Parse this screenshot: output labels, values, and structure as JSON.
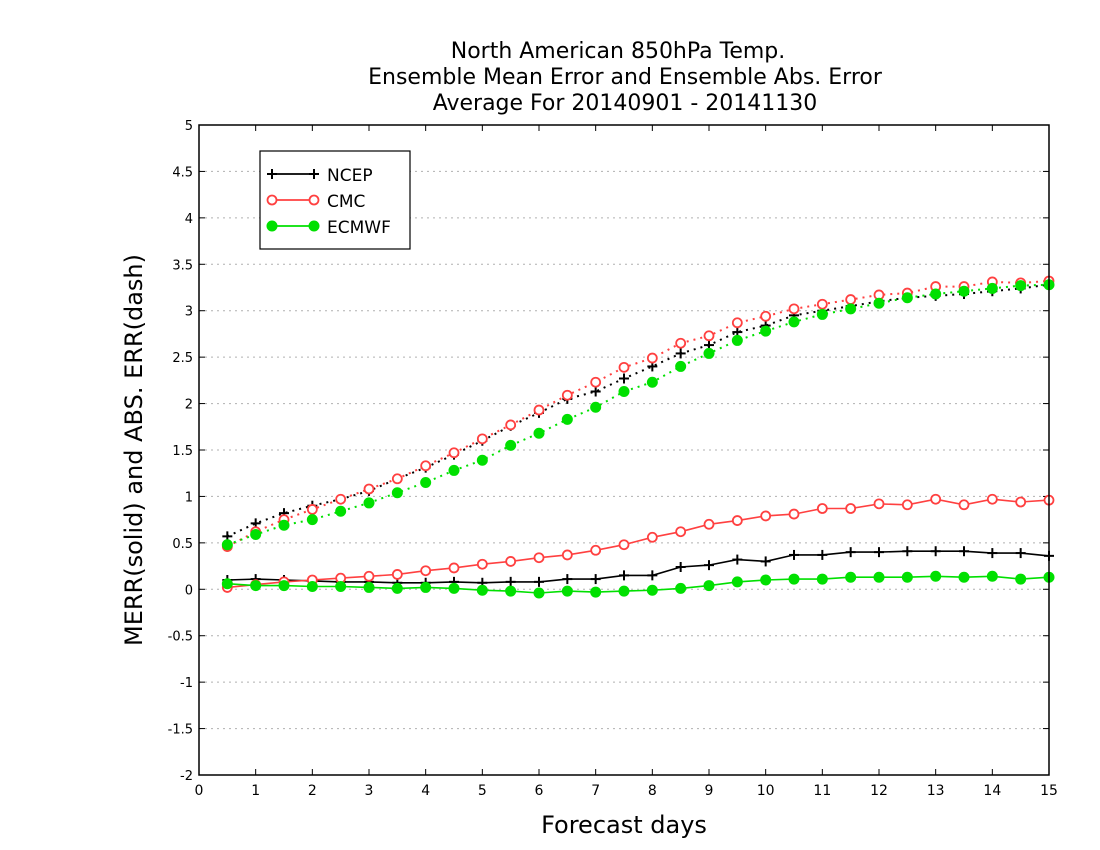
{
  "title_lines": [
    "North American 850hPa Temp.",
    "Ensemble Mean Error and Ensemble Abs. Error",
    "Average For 20140901 - 20141130"
  ],
  "chart_data": {
    "type": "line",
    "xlabel": "Forecast days",
    "ylabel": "MERR(solid) and ABS. ERR(dash)",
    "xlim": [
      0,
      15
    ],
    "ylim": [
      -2,
      5
    ],
    "x_ticks": [
      0,
      1,
      2,
      3,
      4,
      5,
      6,
      7,
      8,
      9,
      10,
      11,
      12,
      13,
      14,
      15
    ],
    "y_ticks": [
      -2,
      -1.5,
      -1,
      -0.5,
      0,
      0.5,
      1,
      1.5,
      2,
      2.5,
      3,
      3.5,
      4,
      4.5,
      5
    ],
    "y_tick_labels": [
      "-2",
      "-1.5",
      "-1",
      "-0.5",
      "0",
      "0.5",
      "1",
      "1.5",
      "2",
      "2.5",
      "3",
      "3.5",
      "4",
      "4.5",
      "5"
    ],
    "grid": "horizontal dotted",
    "legend_position": "top-left",
    "x": [
      0.5,
      1,
      1.5,
      2,
      2.5,
      3,
      3.5,
      4,
      4.5,
      5,
      5.5,
      6,
      6.5,
      7,
      7.5,
      8,
      8.5,
      9,
      9.5,
      10,
      10.5,
      11,
      11.5,
      12,
      12.5,
      13,
      13.5,
      14,
      14.5,
      15
    ],
    "series": [
      {
        "name": "NCEP",
        "color": "#000000",
        "marker": "plus",
        "merr": [
          0.1,
          0.11,
          0.1,
          0.09,
          0.08,
          0.08,
          0.07,
          0.07,
          0.08,
          0.07,
          0.08,
          0.08,
          0.11,
          0.11,
          0.15,
          0.15,
          0.24,
          0.26,
          0.32,
          0.3,
          0.37,
          0.37,
          0.4,
          0.4,
          0.41,
          0.41,
          0.41,
          0.39,
          0.39,
          0.36
        ],
        "abs_err": [
          0.57,
          0.71,
          0.82,
          0.9,
          0.97,
          1.06,
          1.19,
          1.31,
          1.45,
          1.6,
          1.76,
          1.9,
          2.05,
          2.13,
          2.27,
          2.4,
          2.54,
          2.63,
          2.77,
          2.84,
          2.95,
          3.0,
          3.05,
          3.1,
          3.14,
          3.16,
          3.18,
          3.21,
          3.24,
          3.28
        ]
      },
      {
        "name": "CMC",
        "color": "#ff4040",
        "marker": "open-circle",
        "merr": [
          0.02,
          0.05,
          0.08,
          0.1,
          0.12,
          0.14,
          0.16,
          0.2,
          0.23,
          0.27,
          0.3,
          0.34,
          0.37,
          0.42,
          0.48,
          0.56,
          0.62,
          0.7,
          0.74,
          0.79,
          0.81,
          0.87,
          0.87,
          0.92,
          0.91,
          0.97,
          0.91,
          0.97,
          0.94,
          0.96
        ],
        "abs_err": [
          0.46,
          0.62,
          0.75,
          0.86,
          0.97,
          1.08,
          1.19,
          1.33,
          1.47,
          1.62,
          1.77,
          1.93,
          2.09,
          2.23,
          2.39,
          2.49,
          2.65,
          2.73,
          2.87,
          2.94,
          3.02,
          3.07,
          3.12,
          3.17,
          3.19,
          3.26,
          3.26,
          3.31,
          3.3,
          3.32
        ]
      },
      {
        "name": "ECMWF",
        "color": "#00e000",
        "marker": "filled-circle",
        "merr": [
          0.06,
          0.04,
          0.04,
          0.03,
          0.03,
          0.02,
          0.01,
          0.02,
          0.01,
          -0.01,
          -0.02,
          -0.04,
          -0.02,
          -0.03,
          -0.02,
          -0.01,
          0.01,
          0.04,
          0.08,
          0.1,
          0.11,
          0.11,
          0.13,
          0.13,
          0.13,
          0.14,
          0.13,
          0.14,
          0.11,
          0.13
        ],
        "abs_err": [
          0.48,
          0.59,
          0.69,
          0.75,
          0.84,
          0.93,
          1.04,
          1.15,
          1.28,
          1.39,
          1.55,
          1.68,
          1.83,
          1.96,
          2.13,
          2.23,
          2.4,
          2.54,
          2.68,
          2.78,
          2.88,
          2.96,
          3.02,
          3.08,
          3.14,
          3.18,
          3.21,
          3.24,
          3.27,
          3.28
        ]
      }
    ]
  }
}
